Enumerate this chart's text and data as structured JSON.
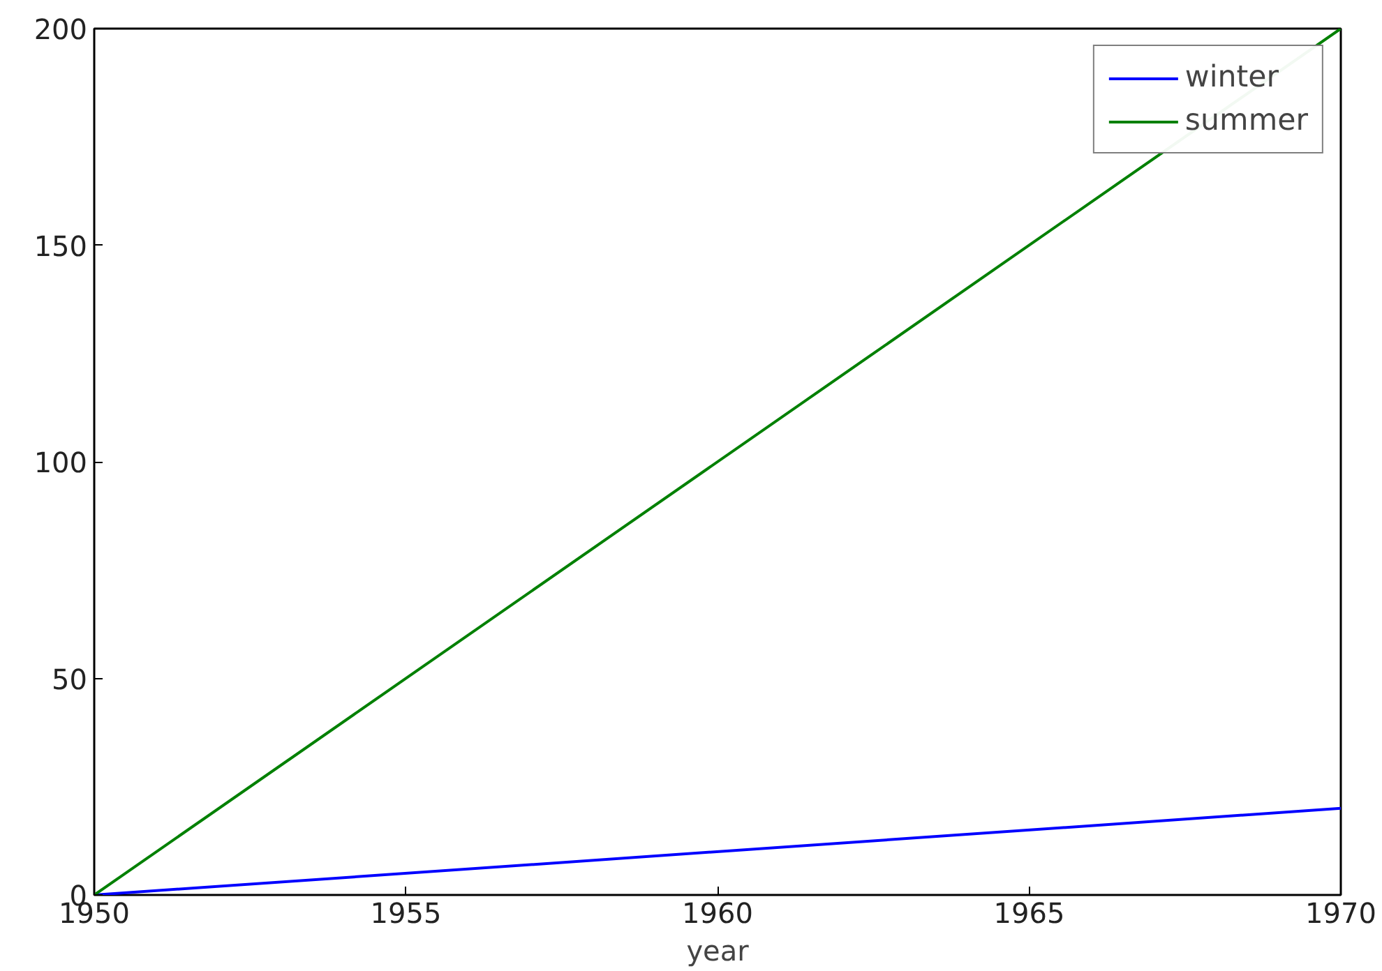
{
  "chart_data": {
    "type": "line",
    "xlabel": "year",
    "x": [
      1950,
      1970
    ],
    "series": [
      {
        "name": "winter",
        "color": "#0000ff",
        "values": [
          0,
          20
        ]
      },
      {
        "name": "summer",
        "color": "#008000",
        "values": [
          0,
          200
        ]
      }
    ],
    "xlim": [
      1950,
      1970
    ],
    "xticks": [
      1950,
      1955,
      1960,
      1965,
      1970
    ],
    "ylim": [
      0,
      200
    ],
    "yticks": [
      0,
      50,
      100,
      150,
      200
    ],
    "grid": false,
    "legend": "top right",
    "marker": "none",
    "line_style": "solid"
  }
}
